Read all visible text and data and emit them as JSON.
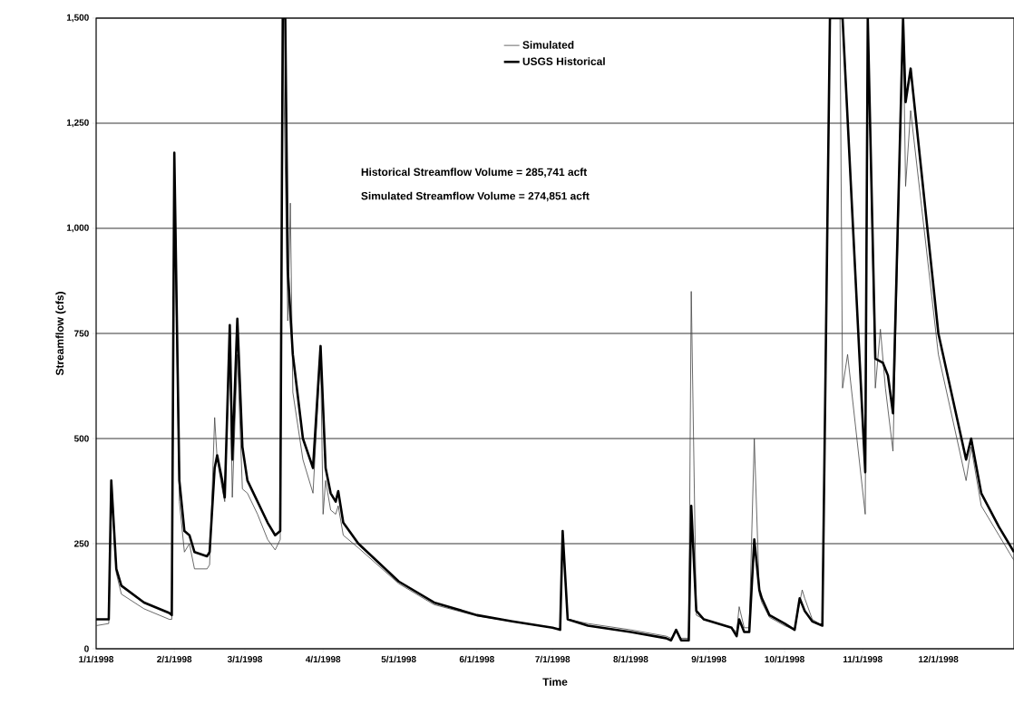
{
  "chart_data": {
    "type": "line",
    "xlabel": "Time",
    "ylabel": "Streamflow (cfs)",
    "xlim": [
      "1998-01-01",
      "1998-12-31"
    ],
    "ylim": [
      0,
      1500
    ],
    "xticks": [
      {
        "value": "1998-01-01",
        "label": "1/1/1998"
      },
      {
        "value": "1998-02-01",
        "label": "2/1/1998"
      },
      {
        "value": "1998-03-01",
        "label": "3/1/1998"
      },
      {
        "value": "1998-04-01",
        "label": "4/1/1998"
      },
      {
        "value": "1998-05-01",
        "label": "5/1/1998"
      },
      {
        "value": "1998-06-01",
        "label": "6/1/1998"
      },
      {
        "value": "1998-07-01",
        "label": "7/1/1998"
      },
      {
        "value": "1998-08-01",
        "label": "8/1/1998"
      },
      {
        "value": "1998-09-01",
        "label": "9/1/1998"
      },
      {
        "value": "1998-10-01",
        "label": "10/1/1998"
      },
      {
        "value": "1998-11-01",
        "label": "11/1/1998"
      },
      {
        "value": "1998-12-01",
        "label": "12/1/1998"
      }
    ],
    "yticks": [
      0,
      250,
      500,
      750,
      {
        "value": 1000,
        "label": "1,000"
      },
      {
        "value": 1250,
        "label": "1,250"
      },
      {
        "value": 1500,
        "label": "1,500"
      }
    ],
    "grid": "y",
    "legend": "top",
    "marker": "none",
    "line_style": "solid",
    "annotations": [
      "Historical Streamflow Volume = 285,741 acft",
      "Simulated Streamflow Volume = 274,851 acft"
    ],
    "series": [
      {
        "name": "Simulated",
        "color": "#444444",
        "x": [
          "1998-01-01",
          "1998-01-06",
          "1998-01-07",
          "1998-01-09",
          "1998-01-11",
          "1998-01-20",
          "1998-01-30",
          "1998-01-31",
          "1998-02-01",
          "1998-02-03",
          "1998-02-05",
          "1998-02-07",
          "1998-02-09",
          "1998-02-14",
          "1998-02-15",
          "1998-02-17",
          "1998-02-18",
          "1998-02-20",
          "1998-02-21",
          "1998-02-23",
          "1998-02-24",
          "1998-02-26",
          "1998-02-28",
          "1998-03-02",
          "1998-03-06",
          "1998-03-10",
          "1998-03-13",
          "1998-03-15",
          "1998-03-16",
          "1998-03-18",
          "1998-03-19",
          "1998-03-20",
          "1998-03-24",
          "1998-03-28",
          "1998-03-31",
          "1998-04-01",
          "1998-04-02",
          "1998-04-04",
          "1998-04-06",
          "1998-04-07",
          "1998-04-09",
          "1998-04-15",
          "1998-05-01",
          "1998-05-15",
          "1998-06-01",
          "1998-06-15",
          "1998-07-01",
          "1998-07-04",
          "1998-07-05",
          "1998-07-07",
          "1998-07-15",
          "1998-08-01",
          "1998-08-15",
          "1998-08-17",
          "1998-08-19",
          "1998-08-21",
          "1998-08-24",
          "1998-08-25",
          "1998-08-27",
          "1998-08-30",
          "1998-09-10",
          "1998-09-12",
          "1998-09-13",
          "1998-09-15",
          "1998-09-17",
          "1998-09-19",
          "1998-09-21",
          "1998-09-22",
          "1998-09-25",
          "1998-10-01",
          "1998-10-05",
          "1998-10-07",
          "1998-10-08",
          "1998-10-09",
          "1998-10-12",
          "1998-10-16",
          "1998-10-19",
          "1998-10-23",
          "1998-10-24",
          "1998-10-26",
          "1998-11-02",
          "1998-11-03",
          "1998-11-06",
          "1998-11-08",
          "1998-11-10",
          "1998-11-13",
          "1998-11-17",
          "1998-11-18",
          "1998-11-20",
          "1998-12-01",
          "1998-12-12",
          "1998-12-14",
          "1998-12-18",
          "1998-12-25",
          "1998-12-31"
        ],
        "values": [
          55,
          60,
          380,
          180,
          130,
          95,
          70,
          70,
          1100,
          350,
          230,
          250,
          190,
          190,
          200,
          550,
          450,
          380,
          350,
          740,
          360,
          700,
          380,
          370,
          320,
          260,
          235,
          260,
          1500,
          780,
          1060,
          610,
          450,
          370,
          700,
          320,
          400,
          330,
          320,
          340,
          270,
          240,
          155,
          105,
          78,
          65,
          50,
          45,
          270,
          70,
          60,
          45,
          30,
          25,
          40,
          25,
          25,
          850,
          80,
          70,
          50,
          40,
          100,
          50,
          50,
          500,
          130,
          110,
          75,
          55,
          45,
          110,
          140,
          120,
          70,
          55,
          1500,
          1500,
          620,
          700,
          320,
          1500,
          620,
          760,
          620,
          470,
          1500,
          1100,
          1280,
          700,
          400,
          480,
          340,
          270,
          210
        ]
      },
      {
        "name": "USGS Historical",
        "color": "#000000",
        "x": [
          "1998-01-01",
          "1998-01-06",
          "1998-01-07",
          "1998-01-09",
          "1998-01-11",
          "1998-01-20",
          "1998-01-30",
          "1998-01-31",
          "1998-02-01",
          "1998-02-03",
          "1998-02-05",
          "1998-02-07",
          "1998-02-09",
          "1998-02-14",
          "1998-02-15",
          "1998-02-17",
          "1998-02-18",
          "1998-02-20",
          "1998-02-21",
          "1998-02-23",
          "1998-02-24",
          "1998-02-26",
          "1998-02-28",
          "1998-03-02",
          "1998-03-06",
          "1998-03-10",
          "1998-03-13",
          "1998-03-15",
          "1998-03-16",
          "1998-03-17",
          "1998-03-18",
          "1998-03-20",
          "1998-03-24",
          "1998-03-28",
          "1998-03-31",
          "1998-04-02",
          "1998-04-04",
          "1998-04-06",
          "1998-04-07",
          "1998-04-09",
          "1998-04-15",
          "1998-05-01",
          "1998-05-15",
          "1998-06-01",
          "1998-06-15",
          "1998-07-01",
          "1998-07-04",
          "1998-07-05",
          "1998-07-07",
          "1998-07-15",
          "1998-08-01",
          "1998-08-15",
          "1998-08-17",
          "1998-08-19",
          "1998-08-21",
          "1998-08-24",
          "1998-08-25",
          "1998-08-27",
          "1998-08-30",
          "1998-09-10",
          "1998-09-12",
          "1998-09-13",
          "1998-09-15",
          "1998-09-17",
          "1998-09-19",
          "1998-09-21",
          "1998-09-22",
          "1998-09-25",
          "1998-10-01",
          "1998-10-05",
          "1998-10-07",
          "1998-10-09",
          "1998-10-12",
          "1998-10-16",
          "1998-10-19",
          "1998-10-24",
          "1998-11-02",
          "1998-11-03",
          "1998-11-06",
          "1998-11-09",
          "1998-11-11",
          "1998-11-13",
          "1998-11-17",
          "1998-11-18",
          "1998-11-20",
          "1998-12-01",
          "1998-12-12",
          "1998-12-14",
          "1998-12-18",
          "1998-12-25",
          "1998-12-31"
        ],
        "values": [
          70,
          70,
          400,
          190,
          150,
          110,
          85,
          80,
          1180,
          400,
          280,
          270,
          230,
          220,
          230,
          430,
          460,
          400,
          360,
          770,
          450,
          785,
          480,
          400,
          350,
          300,
          270,
          280,
          1500,
          1500,
          900,
          700,
          500,
          430,
          720,
          430,
          370,
          350,
          375,
          300,
          250,
          160,
          110,
          80,
          65,
          50,
          45,
          280,
          70,
          55,
          40,
          25,
          20,
          45,
          20,
          20,
          340,
          90,
          70,
          50,
          30,
          70,
          40,
          40,
          260,
          140,
          120,
          80,
          60,
          45,
          120,
          90,
          65,
          55,
          1500,
          1500,
          420,
          1500,
          690,
          680,
          650,
          560,
          1500,
          1300,
          1380,
          750,
          450,
          500,
          370,
          290,
          230
        ]
      }
    ]
  }
}
